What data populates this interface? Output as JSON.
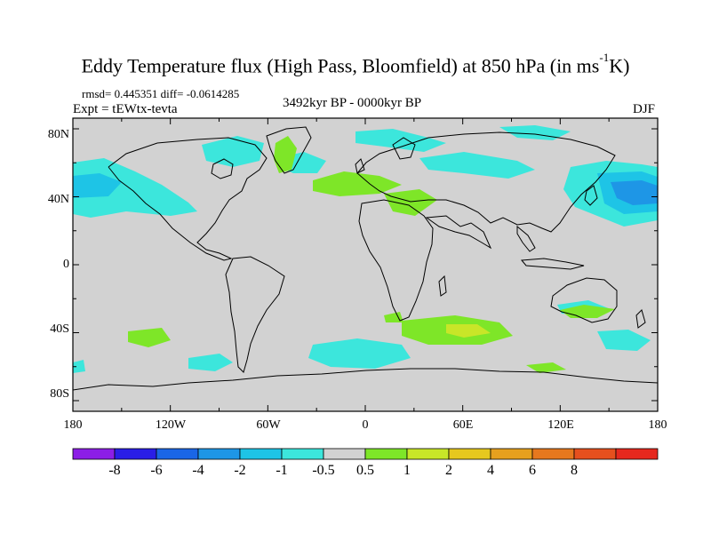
{
  "title": {
    "main": "Eddy Temperature flux (High Pass, Bloomfield) at 850 hPa (in ms",
    "sup": "-1",
    "tail": "K)"
  },
  "stats": "rmsd= 0.445351 diff= -0.0614285",
  "expt": "Expt = tEWtx-tevta",
  "period": "3492kyr BP - 0000kyr BP",
  "season": "DJF",
  "lat_ticks": [
    "80N",
    "40N",
    "0",
    "40S",
    "80S"
  ],
  "lon_ticks": [
    "180",
    "120W",
    "60W",
    "0",
    "60E",
    "120E",
    "180"
  ],
  "colorbar": {
    "colors": [
      "#8c1ee6",
      "#2a1ee6",
      "#1a66e6",
      "#1e96e6",
      "#1ec4e6",
      "#3ce6dc",
      "#d2d2d2",
      "#7ee628",
      "#c8e628",
      "#e6c81e",
      "#e6a01e",
      "#e6781e",
      "#e6501e",
      "#e6281e"
    ],
    "labels": [
      "-8",
      "-6",
      "-4",
      "-2",
      "-1",
      "-0.5",
      "0.5",
      "1",
      "2",
      "4",
      "6",
      "8"
    ]
  },
  "field_colors": {
    "neutral": "#d2d2d2",
    "neg_light": "#3ce6dc",
    "neg_mid": "#1ec4e6",
    "neg_strong": "#1e96e6",
    "pos_light": "#7ee628",
    "pos_mid": "#c8e628",
    "coast": "#000000"
  }
}
